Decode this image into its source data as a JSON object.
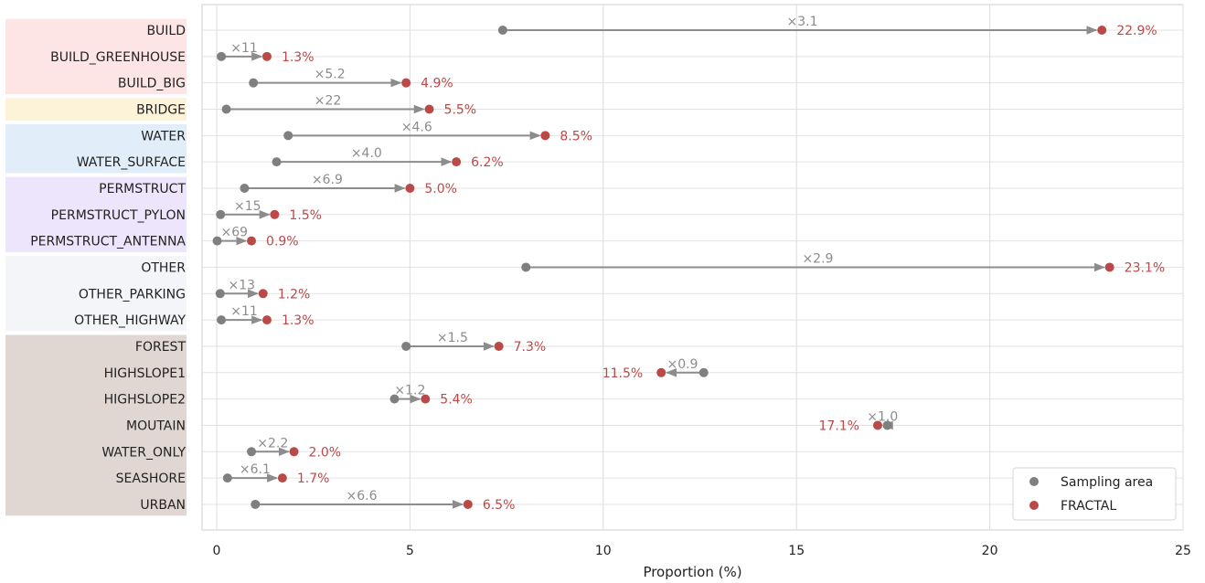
{
  "chart_data": {
    "type": "dumbbell",
    "xlabel": "Proportion (%)",
    "xlim": [
      0,
      25
    ],
    "xticks": [
      "0",
      "5",
      "10",
      "15",
      "20",
      "25"
    ],
    "grid": true,
    "legend_position": "bottom-right",
    "series": [
      {
        "name": "Sampling area",
        "color": "#7f7f7f"
      },
      {
        "name": "FRACTAL",
        "color": "#b94a48"
      }
    ],
    "groups": [
      {
        "color": "#fde5e5",
        "categories": [
          "BUILD",
          "BUILD_GREENHOUSE",
          "BUILD_BIG"
        ]
      },
      {
        "color": "#fdf3d8",
        "categories": [
          "BRIDGE"
        ]
      },
      {
        "color": "#e1eefa",
        "categories": [
          "WATER",
          "WATER_SURFACE"
        ]
      },
      {
        "color": "#ece5fb",
        "categories": [
          "PERMSTRUCT",
          "PERMSTRUCT_PYLON",
          "PERMSTRUCT_ANTENNA"
        ]
      },
      {
        "color": "#f3f5f8",
        "categories": [
          "OTHER",
          "OTHER_PARKING",
          "OTHER_HIGHWAY"
        ]
      },
      {
        "color": "#e0d6d2",
        "categories": [
          "FOREST",
          "HIGHSLOPE1",
          "HIGHSLOPE2",
          "MOUTAIN",
          "WATER_ONLY",
          "SEASHORE",
          "URBAN"
        ]
      }
    ],
    "rows": [
      {
        "category": "BUILD",
        "sampling": 7.4,
        "fractal": 22.9,
        "ratio": "×3.1",
        "label": "22.9%"
      },
      {
        "category": "BUILD_GREENHOUSE",
        "sampling": 0.12,
        "fractal": 1.3,
        "ratio": "×11",
        "label": "1.3%"
      },
      {
        "category": "BUILD_BIG",
        "sampling": 0.95,
        "fractal": 4.9,
        "ratio": "×5.2",
        "label": "4.9%"
      },
      {
        "category": "BRIDGE",
        "sampling": 0.25,
        "fractal": 5.5,
        "ratio": "×22",
        "label": "5.5%"
      },
      {
        "category": "WATER",
        "sampling": 1.85,
        "fractal": 8.5,
        "ratio": "×4.6",
        "label": "8.5%"
      },
      {
        "category": "WATER_SURFACE",
        "sampling": 1.55,
        "fractal": 6.2,
        "ratio": "×4.0",
        "label": "6.2%"
      },
      {
        "category": "PERMSTRUCT",
        "sampling": 0.72,
        "fractal": 5.0,
        "ratio": "×6.9",
        "label": "5.0%"
      },
      {
        "category": "PERMSTRUCT_PYLON",
        "sampling": 0.1,
        "fractal": 1.5,
        "ratio": "×15",
        "label": "1.5%"
      },
      {
        "category": "PERMSTRUCT_ANTENNA",
        "sampling": 0.013,
        "fractal": 0.9,
        "ratio": "×69",
        "label": "0.9%"
      },
      {
        "category": "OTHER",
        "sampling": 8.0,
        "fractal": 23.1,
        "ratio": "×2.9",
        "label": "23.1%"
      },
      {
        "category": "OTHER_PARKING",
        "sampling": 0.09,
        "fractal": 1.2,
        "ratio": "×13",
        "label": "1.2%"
      },
      {
        "category": "OTHER_HIGHWAY",
        "sampling": 0.12,
        "fractal": 1.3,
        "ratio": "×11",
        "label": "1.3%"
      },
      {
        "category": "FOREST",
        "sampling": 4.9,
        "fractal": 7.3,
        "ratio": "×1.5",
        "label": "7.3%"
      },
      {
        "category": "HIGHSLOPE1",
        "sampling": 12.6,
        "fractal": 11.5,
        "ratio": "×0.9",
        "label": "11.5%"
      },
      {
        "category": "HIGHSLOPE2",
        "sampling": 4.6,
        "fractal": 5.4,
        "ratio": "×1.2",
        "label": "5.4%"
      },
      {
        "category": "MOUTAIN",
        "sampling": 17.35,
        "fractal": 17.1,
        "ratio": "×1.0",
        "label": "17.1%"
      },
      {
        "category": "WATER_ONLY",
        "sampling": 0.9,
        "fractal": 2.0,
        "ratio": "×2.2",
        "label": "2.0%"
      },
      {
        "category": "SEASHORE",
        "sampling": 0.28,
        "fractal": 1.7,
        "ratio": "×6.1",
        "label": "1.7%"
      },
      {
        "category": "URBAN",
        "sampling": 1.0,
        "fractal": 6.5,
        "ratio": "×6.6",
        "label": "6.5%"
      }
    ]
  }
}
